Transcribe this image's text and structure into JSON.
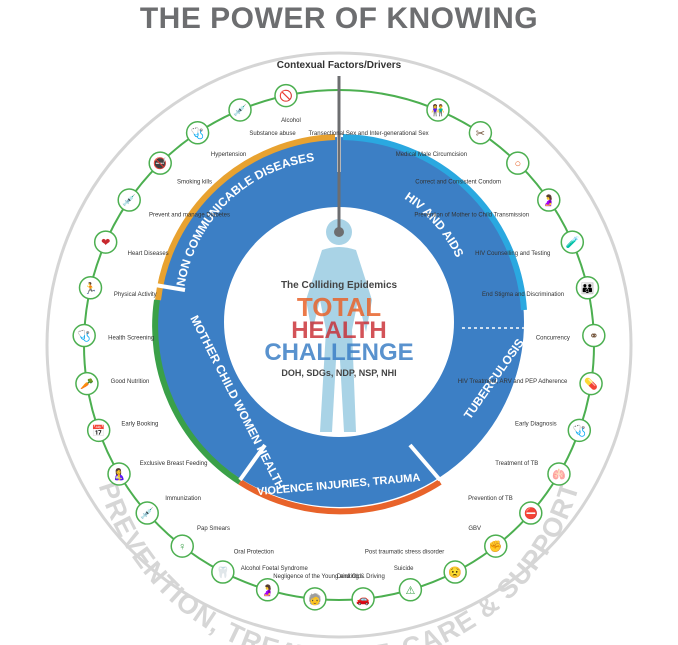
{
  "title": "THE POWER OF KNOWING",
  "header_label": "Contexual Factors/Drivers",
  "center": {
    "subtitle": "The Colliding Epidemics",
    "line1": "TOTAL",
    "line2": "HEALTH",
    "line3": "CHALLENGE",
    "footer": "DOH, SDGs, NDP, NSP, NHI"
  },
  "arc_text": "PREVENTION, TREATMENT, CARE & SUPPORT",
  "segments": [
    {
      "label": "NON COMMUNICABLE DISEASES",
      "accent": "#e8a230"
    },
    {
      "label": "HIV AND AIDS",
      "accent": "#c8282e"
    },
    {
      "label": "TUBERCULOSIS",
      "accent": "#6b4a2f"
    },
    {
      "label": "VIOLENCE INJURIES, TRAUMA",
      "accent": "#e8632a"
    },
    {
      "label": "MOTHER CHILD WOMEN HEALTH",
      "accent": "#3aa048"
    }
  ],
  "icons": [
    {
      "label": "Alcohol",
      "icon": "no-alcohol-icon"
    },
    {
      "label": "Substance abuse",
      "icon": "syringe-icon"
    },
    {
      "label": "Hypertension",
      "icon": "blood-pressure-icon"
    },
    {
      "label": "Smoking kills",
      "icon": "no-smoking-icon"
    },
    {
      "label": "Prevent and manage Diabetes",
      "icon": "insulin-pen-icon"
    },
    {
      "label": "Heart Diseases",
      "icon": "heart-icon"
    },
    {
      "label": "Physical Activity",
      "icon": "running-icon"
    },
    {
      "label": "Health Screening",
      "icon": "stethoscope-icon"
    },
    {
      "label": "Good Nutrition",
      "icon": "vegetables-icon"
    },
    {
      "label": "Early Booking",
      "icon": "calendar-icon"
    },
    {
      "label": "Exclusive Breast Feeding",
      "icon": "breastfeeding-icon"
    },
    {
      "label": "Immunization",
      "icon": "vaccine-icon"
    },
    {
      "label": "Pap Smears",
      "icon": "uterus-icon"
    },
    {
      "label": "Oral Protection",
      "icon": "tooth-icon"
    },
    {
      "label": "Alcohol Foetal Syndrome",
      "icon": "pregnancy-icon"
    },
    {
      "label": "Negligence of the Young and Old",
      "icon": "elderly-icon"
    },
    {
      "label": "Drinking & Driving",
      "icon": "car-icon"
    },
    {
      "label": "Suicide",
      "icon": "suicide-icon"
    },
    {
      "label": "Post traumatic stress disorder",
      "icon": "distress-icon"
    },
    {
      "label": "GBV",
      "icon": "violence-icon"
    },
    {
      "label": "Prevention of TB",
      "icon": "stop-tb-icon"
    },
    {
      "label": "Treatment of TB",
      "icon": "lungs-icon"
    },
    {
      "label": "Early Diagnosis",
      "icon": "stethoscope-icon"
    },
    {
      "label": "HIV Treatment, ARV and PEP Adherence",
      "icon": "pills-icon"
    },
    {
      "label": "Concurrency",
      "icon": "network-icon"
    },
    {
      "label": "End Stigma and Discrimination",
      "icon": "people-icon"
    },
    {
      "label": "HIV Counselling and Testing",
      "icon": "test-tube-icon"
    },
    {
      "label": "Prevention of Mother to Child Transmission",
      "icon": "mother-baby-icon"
    },
    {
      "label": "Correct and Consistent Condom",
      "icon": "condom-icon"
    },
    {
      "label": "Medical Male Circumcision",
      "icon": "scissors-icon"
    },
    {
      "label": "Transectional Sex and Inter-generational Sex",
      "icon": "couple-icon"
    }
  ]
}
